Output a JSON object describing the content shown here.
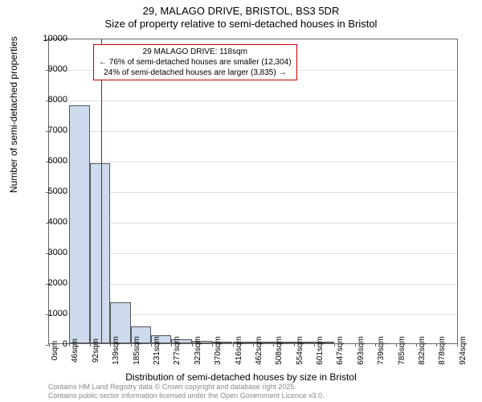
{
  "title": {
    "line1": "29, MALAGO DRIVE, BRISTOL, BS3 5DR",
    "line2": "Size of property relative to semi-detached houses in Bristol"
  },
  "chart": {
    "type": "histogram",
    "ylabel": "Number of semi-detached properties",
    "xlabel": "Distribution of semi-detached houses by size in Bristol",
    "ylim": [
      0,
      10000
    ],
    "ytick_step": 1000,
    "yticks": [
      0,
      1000,
      2000,
      3000,
      4000,
      5000,
      6000,
      7000,
      8000,
      9000,
      10000
    ],
    "xticks": [
      "0sqm",
      "46sqm",
      "92sqm",
      "139sqm",
      "185sqm",
      "231sqm",
      "277sqm",
      "323sqm",
      "370sqm",
      "416sqm",
      "462sqm",
      "508sqm",
      "554sqm",
      "601sqm",
      "647sqm",
      "693sqm",
      "739sqm",
      "785sqm",
      "832sqm",
      "878sqm",
      "924sqm"
    ],
    "xmax": 924,
    "bar_width_sqm": 46,
    "values": [
      0,
      7800,
      5900,
      1350,
      550,
      260,
      140,
      90,
      50,
      30,
      15,
      10,
      5,
      5,
      0,
      0,
      0,
      0,
      0,
      0
    ],
    "bar_color": "#cdd9ed",
    "bar_border": "#555555",
    "background_color": "#ffffff",
    "grid_color": "#e0e0e0"
  },
  "marker": {
    "position_sqm": 118,
    "color": "#cc0000"
  },
  "annotation": {
    "line1": "29 MALAGO DRIVE: 118sqm",
    "line2": "← 76% of semi-detached houses are smaller (12,304)",
    "line3": "24% of semi-detached houses are larger (3,835) →"
  },
  "credits": {
    "line1": "Contains HM Land Registry data © Crown copyright and database right 2025.",
    "line2": "Contains public sector information licensed under the Open Government Licence v3.0."
  }
}
